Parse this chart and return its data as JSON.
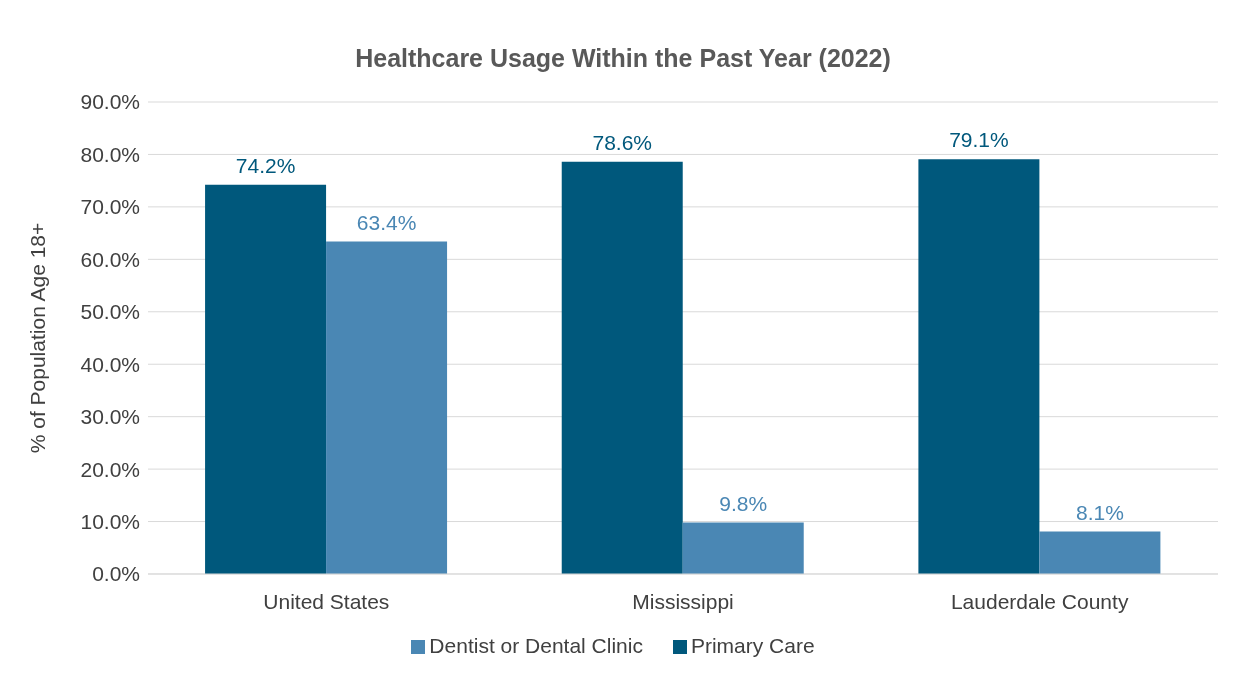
{
  "chart_data": {
    "type": "bar",
    "title": "Healthcare Usage Within the Past Year (2022)",
    "ylabel": "% of Population Age 18+",
    "categories": [
      "United States",
      "Mississippi",
      "Lauderdale County"
    ],
    "series": [
      {
        "name": "Primary Care",
        "color": "#00587c",
        "values": [
          74.2,
          78.6,
          79.1
        ],
        "value_labels": [
          "74.2%",
          "78.6%",
          "79.1%"
        ]
      },
      {
        "name": "Dentist or Dental Clinic",
        "color": "#4a87b4",
        "values": [
          63.4,
          9.8,
          8.1
        ],
        "value_labels": [
          "63.4%",
          "9.8%",
          "8.1%"
        ]
      }
    ],
    "ylim": [
      0,
      90
    ],
    "yticks": [
      {
        "value": 0,
        "label": "0.0%"
      },
      {
        "value": 10,
        "label": "10.0%"
      },
      {
        "value": 20,
        "label": "20.0%"
      },
      {
        "value": 30,
        "label": "30.0%"
      },
      {
        "value": 40,
        "label": "40.0%"
      },
      {
        "value": 50,
        "label": "50.0%"
      },
      {
        "value": 60,
        "label": "60.0%"
      },
      {
        "value": 70,
        "label": "70.0%"
      },
      {
        "value": 80,
        "label": "80.0%"
      },
      {
        "value": 90,
        "label": "90.0%"
      }
    ],
    "grid": "y",
    "legend": "bottom"
  }
}
